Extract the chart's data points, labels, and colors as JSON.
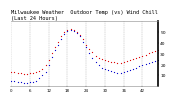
{
  "title1": "Milwaukee Weather  Outdoor Temp (vs) Wind Chill",
  "title2": "(Last 24 Hours)",
  "temp": [
    13,
    13,
    12,
    12,
    11,
    11,
    12,
    12,
    13,
    14,
    16,
    19,
    24,
    30,
    36,
    41,
    46,
    50,
    52,
    53,
    52,
    50,
    47,
    43,
    38,
    34,
    31,
    28,
    26,
    25,
    24,
    23,
    22,
    22,
    21,
    21,
    22,
    23,
    24,
    25,
    26,
    27,
    28,
    29,
    30,
    31,
    32,
    33
  ],
  "windchill": [
    5,
    5,
    4,
    4,
    3,
    3,
    4,
    4,
    5,
    7,
    10,
    13,
    19,
    27,
    33,
    38,
    43,
    48,
    51,
    52,
    51,
    49,
    46,
    41,
    36,
    30,
    26,
    22,
    19,
    17,
    16,
    15,
    14,
    13,
    12,
    12,
    13,
    14,
    15,
    16,
    17,
    18,
    19,
    20,
    21,
    22,
    23,
    24
  ],
  "temp_color": "#dd0000",
  "windchill_color": "#0000cc",
  "bg_color": "#ffffff",
  "plot_bg": "#ffffff",
  "grid_color": "#888888",
  "ylim_min": 0,
  "ylim_max": 60,
  "ytick_labels": [
    "10",
    "20",
    "30",
    "40",
    "50"
  ],
  "ytick_values": [
    10,
    20,
    30,
    40,
    50
  ],
  "n_points": 48,
  "title_fontsize": 3.8,
  "tick_fontsize": 3.2,
  "marker_size": 0.9,
  "n_vgrid": 8
}
